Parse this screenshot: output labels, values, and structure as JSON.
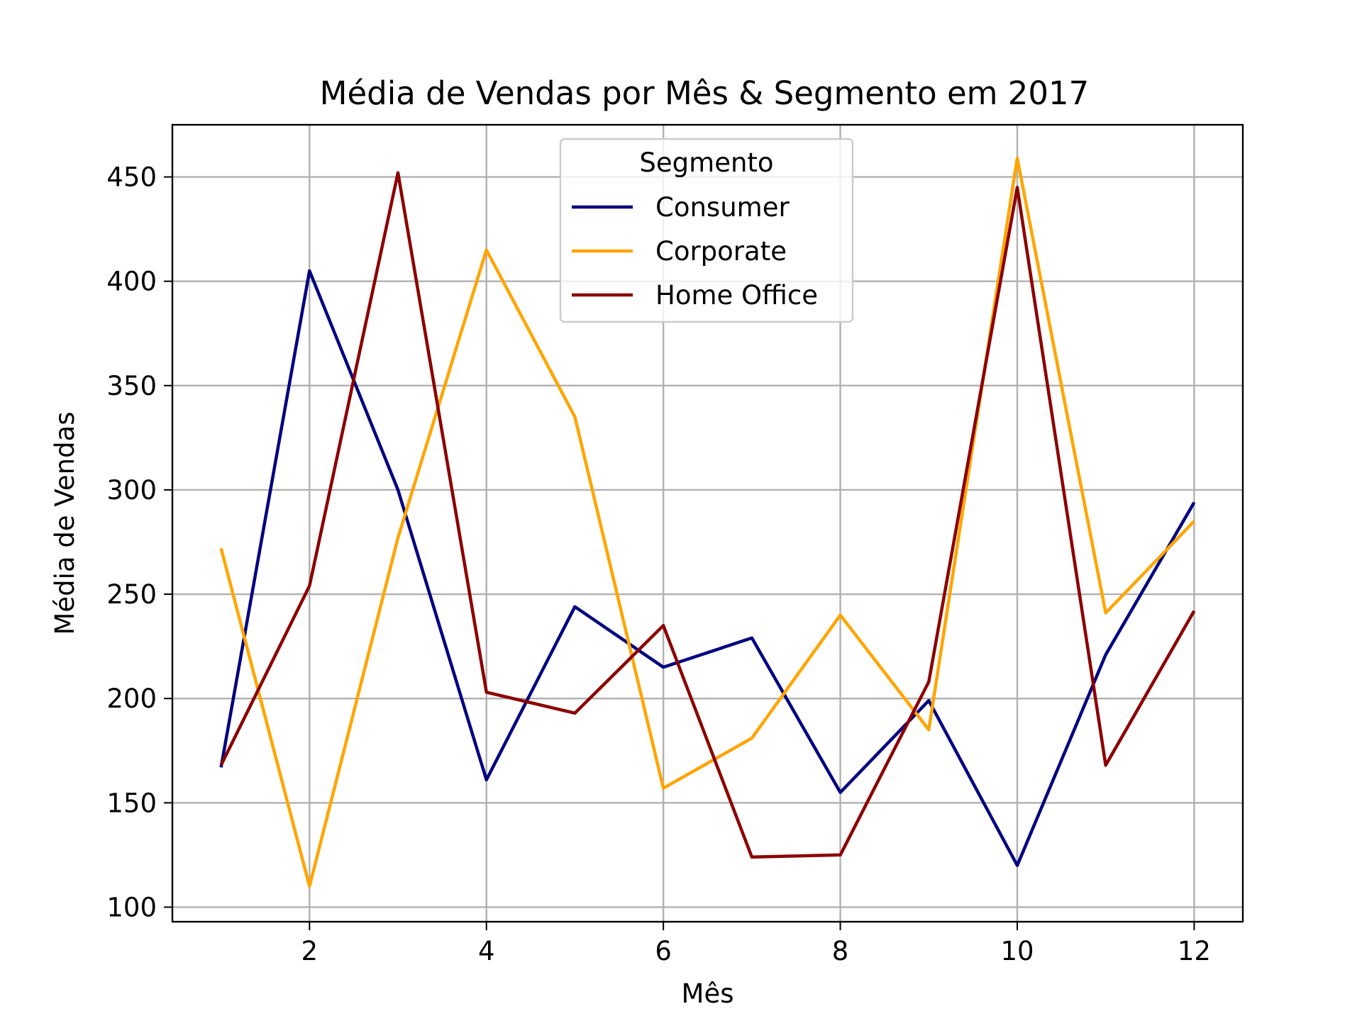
{
  "chart_data": {
    "type": "line",
    "title": "Média de Vendas por Mês & Segmento em 2017",
    "xlabel": "Mês",
    "ylabel": "Média de Vendas",
    "x": [
      1,
      2,
      3,
      4,
      5,
      6,
      7,
      8,
      9,
      10,
      11,
      12
    ],
    "xlim": [
      0.45,
      12.55
    ],
    "ylim": [
      93,
      475
    ],
    "xticks": [
      2,
      4,
      6,
      8,
      10,
      12
    ],
    "yticks": [
      100,
      150,
      200,
      250,
      300,
      350,
      400,
      450
    ],
    "grid": true,
    "legend": {
      "title": "Segmento",
      "position": "upper-center"
    },
    "series": [
      {
        "name": "Consumer",
        "color": "#000080",
        "values": [
          167,
          405,
          300,
          161,
          244,
          215,
          229,
          155,
          199,
          120,
          221,
          294
        ]
      },
      {
        "name": "Corporate",
        "color": "#FFA500",
        "values": [
          272,
          110,
          277,
          415,
          335,
          157,
          181,
          240,
          185,
          459,
          241,
          285
        ]
      },
      {
        "name": "Home Office",
        "color": "#8B0000",
        "values": [
          168,
          254,
          452,
          203,
          193,
          235,
          124,
          125,
          208,
          445,
          168,
          242
        ]
      }
    ]
  }
}
